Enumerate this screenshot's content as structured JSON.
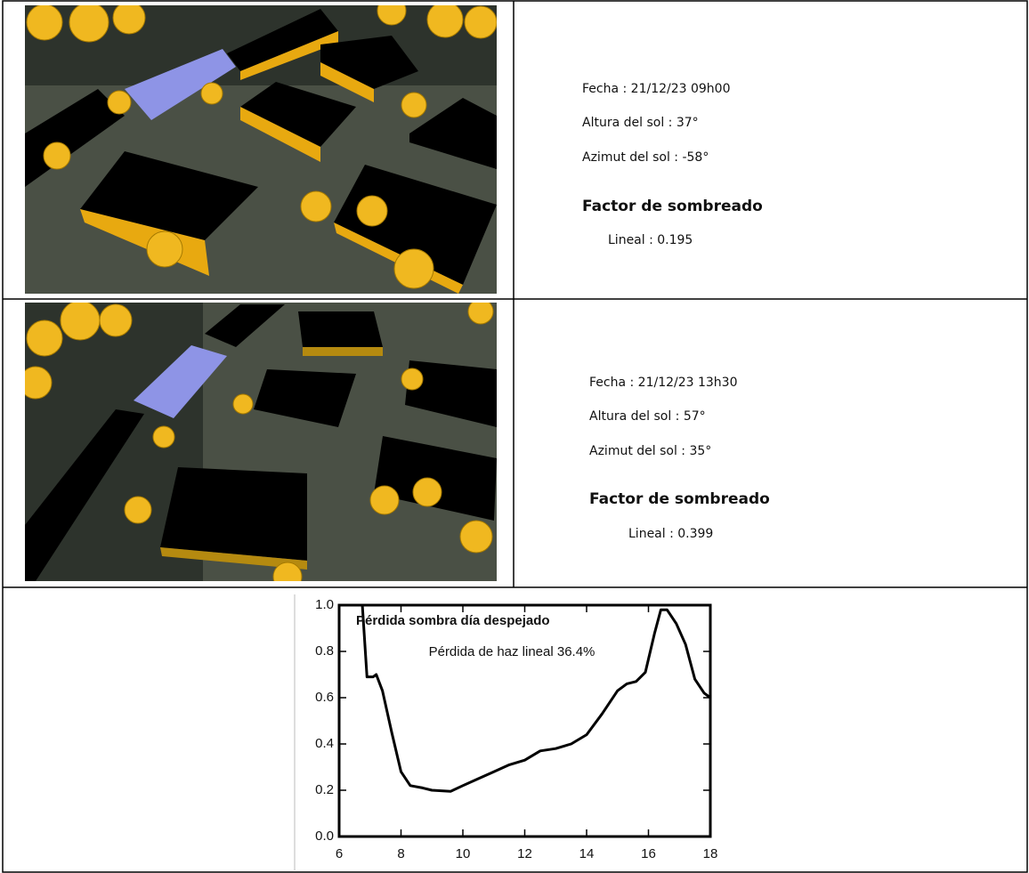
{
  "rows": [
    {
      "fecha": "Fecha : 21/12/23 09h00",
      "altura": "Altura del sol : 37°",
      "azimut": "Azimut del sol : -58°",
      "factor_title": "Factor de sombreado",
      "lineal": "Lineal : 0.195"
    },
    {
      "fecha": "Fecha : 21/12/23 13h30",
      "altura": "Altura del sol : 57°",
      "azimut": "Azimut del sol : 35°",
      "factor_title": "Factor de sombreado",
      "lineal": "Lineal : 0.399"
    }
  ],
  "chart_data": {
    "type": "line",
    "title": "Pérdida sombra día despejado",
    "subtitle": "Pérdida de haz lineal 36.4%",
    "x": [
      6.75,
      6.9,
      7.1,
      7.2,
      7.4,
      7.7,
      8.0,
      8.3,
      8.7,
      9.0,
      9.6,
      10,
      10.5,
      11,
      11.5,
      12,
      12.5,
      13,
      13.5,
      14,
      14.5,
      15,
      15.3,
      15.6,
      15.9,
      16.2,
      16.4,
      16.6,
      16.9,
      17.2,
      17.5,
      17.8,
      18
    ],
    "series": [
      {
        "color": "#000000",
        "values": [
          1.0,
          0.69,
          0.69,
          0.7,
          0.63,
          0.45,
          0.28,
          0.22,
          0.21,
          0.2,
          0.195,
          0.22,
          0.25,
          0.28,
          0.31,
          0.33,
          0.37,
          0.38,
          0.4,
          0.44,
          0.53,
          0.63,
          0.66,
          0.67,
          0.71,
          0.88,
          0.98,
          0.98,
          0.92,
          0.83,
          0.68,
          0.62,
          0.6
        ]
      }
    ],
    "xlim": [
      6,
      18
    ],
    "ylim": [
      0,
      1
    ],
    "xticks": [
      6,
      8,
      10,
      12,
      14,
      16,
      18
    ],
    "yticks": [
      {
        "value": 0,
        "label": "0.0"
      },
      0.2,
      0.4,
      0.6,
      0.8,
      {
        "value": 1,
        "label": "1.0"
      }
    ]
  }
}
